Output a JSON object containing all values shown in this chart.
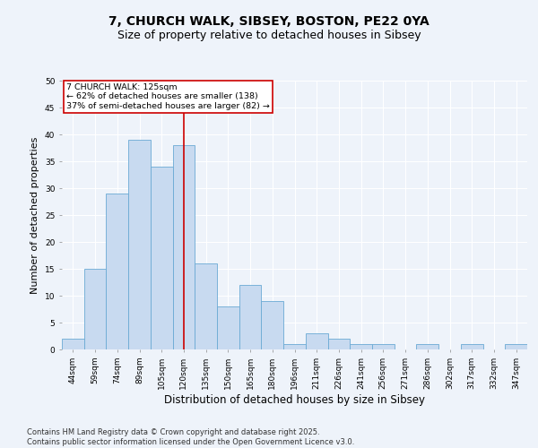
{
  "title": "7, CHURCH WALK, SIBSEY, BOSTON, PE22 0YA",
  "subtitle": "Size of property relative to detached houses in Sibsey",
  "xlabel": "Distribution of detached houses by size in Sibsey",
  "ylabel": "Number of detached properties",
  "categories": [
    "44sqm",
    "59sqm",
    "74sqm",
    "89sqm",
    "105sqm",
    "120sqm",
    "135sqm",
    "150sqm",
    "165sqm",
    "180sqm",
    "196sqm",
    "211sqm",
    "226sqm",
    "241sqm",
    "256sqm",
    "271sqm",
    "286sqm",
    "302sqm",
    "317sqm",
    "332sqm",
    "347sqm"
  ],
  "values": [
    2,
    15,
    29,
    39,
    34,
    38,
    16,
    8,
    12,
    9,
    1,
    3,
    2,
    1,
    1,
    0,
    1,
    0,
    1,
    0,
    1
  ],
  "bar_color": "#c8daf0",
  "bar_edge_color": "#6aaad4",
  "property_label": "7 CHURCH WALK: 125sqm",
  "annotation_line1": "← 62% of detached houses are smaller (138)",
  "annotation_line2": "37% of semi-detached houses are larger (82) →",
  "vline_x": 5.0,
  "annotation_box_color": "#ffffff",
  "annotation_box_edge": "#cc0000",
  "vline_color": "#cc0000",
  "background_color": "#eef3fa",
  "grid_color": "#ffffff",
  "ylim": [
    0,
    50
  ],
  "yticks": [
    0,
    5,
    10,
    15,
    20,
    25,
    30,
    35,
    40,
    45,
    50
  ],
  "title_fontsize": 10,
  "subtitle_fontsize": 9,
  "xlabel_fontsize": 8.5,
  "ylabel_fontsize": 8,
  "tick_fontsize": 6.5,
  "footer_fontsize": 6,
  "footer": "Contains HM Land Registry data © Crown copyright and database right 2025.\nContains public sector information licensed under the Open Government Licence v3.0."
}
